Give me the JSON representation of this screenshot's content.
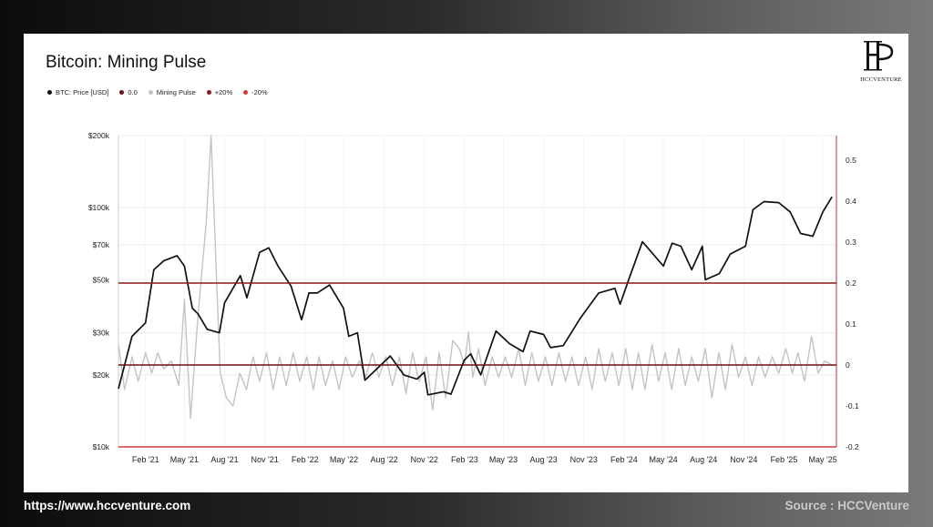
{
  "footer": {
    "url": "https://www.hccventure.com",
    "source": "Source : HCCVenture"
  },
  "logo": {
    "text": "HCCVENTURE",
    "icon": "hcc-monogram-icon"
  },
  "colors": {
    "price": "#111111",
    "zero_line": "#6b1111",
    "mining_pulse": "#c4c4c4",
    "plus20": "#8b1a1a",
    "minus20": "#d63a3a"
  },
  "chart_data": {
    "type": "line",
    "title": "Bitcoin: Mining Pulse",
    "legend": [
      {
        "label": "BTC: Price [USD]",
        "color": "#111111"
      },
      {
        "label": "0.0",
        "color": "#6b1111"
      },
      {
        "label": "Mining Pulse",
        "color": "#c4c4c4"
      },
      {
        "label": "+20%",
        "color": "#8b1a1a"
      },
      {
        "label": "-20%",
        "color": "#d63a3a"
      }
    ],
    "x_ticks": [
      "Feb '21",
      "May '21",
      "Aug '21",
      "Nov '21",
      "Feb '22",
      "May '22",
      "Aug '22",
      "Nov '22",
      "Feb '23",
      "May '23",
      "Aug '23",
      "Nov '23",
      "Feb '24",
      "May '24",
      "Aug '24",
      "Nov '24",
      "Feb '25",
      "May '25"
    ],
    "x_range": [
      "2020-12",
      "2025-06"
    ],
    "y_left": {
      "scale": "log",
      "range": [
        10000,
        200000
      ],
      "ticks": [
        {
          "value": 10000,
          "label": "$10k"
        },
        {
          "value": 20000,
          "label": "$20k"
        },
        {
          "value": 30000,
          "label": "$30k"
        },
        {
          "value": 50000,
          "label": "$50k"
        },
        {
          "value": 70000,
          "label": "$70k"
        },
        {
          "value": 100000,
          "label": "$100k"
        },
        {
          "value": 200000,
          "label": "$200k"
        }
      ]
    },
    "y_right": {
      "scale": "linear",
      "range": [
        -0.2,
        0.56
      ],
      "ticks": [
        {
          "value": 0.5,
          "label": "0.5"
        },
        {
          "value": 0.4,
          "label": "0.4"
        },
        {
          "value": 0.3,
          "label": "0.3"
        },
        {
          "value": 0.2,
          "label": "0.2"
        },
        {
          "value": 0.1,
          "label": "0.1"
        },
        {
          "value": 0,
          "label": "0"
        },
        {
          "value": -0.1,
          "label": "-0.1"
        },
        {
          "value": -0.2,
          "label": "-0.2"
        }
      ]
    },
    "reference_lines": [
      {
        "name": "0.0",
        "value": 0,
        "axis": "right",
        "color": "#6b1111"
      },
      {
        "name": "+20%",
        "value": 0.2,
        "axis": "right",
        "color": "#8b1a1a"
      },
      {
        "name": "-20%",
        "value": -0.2,
        "axis": "right",
        "color": "#d63a3a"
      }
    ],
    "grid": true,
    "series": [
      {
        "name": "BTC: Price [USD]",
        "axis": "left",
        "color": "#111111",
        "points": [
          [
            "2020-12-01",
            17500
          ],
          [
            "2021-01-01",
            29000
          ],
          [
            "2021-02-01",
            33000
          ],
          [
            "2021-02-20",
            55000
          ],
          [
            "2021-03-15",
            60000
          ],
          [
            "2021-04-14",
            63000
          ],
          [
            "2021-05-01",
            57000
          ],
          [
            "2021-05-19",
            38000
          ],
          [
            "2021-06-01",
            36000
          ],
          [
            "2021-06-22",
            31000
          ],
          [
            "2021-07-20",
            30000
          ],
          [
            "2021-08-01",
            40000
          ],
          [
            "2021-09-06",
            52000
          ],
          [
            "2021-09-21",
            42000
          ],
          [
            "2021-10-20",
            65000
          ],
          [
            "2021-11-10",
            68000
          ],
          [
            "2021-12-01",
            57000
          ],
          [
            "2021-12-31",
            47000
          ],
          [
            "2022-01-24",
            34000
          ],
          [
            "2022-02-10",
            44000
          ],
          [
            "2022-03-01",
            44000
          ],
          [
            "2022-03-29",
            47500
          ],
          [
            "2022-04-30",
            38000
          ],
          [
            "2022-05-12",
            29000
          ],
          [
            "2022-06-01",
            30000
          ],
          [
            "2022-06-18",
            19000
          ],
          [
            "2022-07-01",
            20000
          ],
          [
            "2022-08-15",
            24000
          ],
          [
            "2022-09-15",
            20000
          ],
          [
            "2022-10-15",
            19200
          ],
          [
            "2022-11-01",
            20500
          ],
          [
            "2022-11-09",
            16500
          ],
          [
            "2022-12-15",
            17000
          ],
          [
            "2023-01-01",
            16600
          ],
          [
            "2023-01-31",
            23000
          ],
          [
            "2023-02-15",
            24500
          ],
          [
            "2023-03-10",
            20000
          ],
          [
            "2023-04-14",
            30500
          ],
          [
            "2023-05-15",
            27000
          ],
          [
            "2023-06-15",
            25000
          ],
          [
            "2023-07-01",
            30500
          ],
          [
            "2023-08-01",
            29500
          ],
          [
            "2023-08-17",
            26000
          ],
          [
            "2023-09-15",
            26500
          ],
          [
            "2023-10-24",
            34500
          ],
          [
            "2023-12-05",
            44000
          ],
          [
            "2024-01-11",
            46000
          ],
          [
            "2024-01-23",
            39500
          ],
          [
            "2024-02-15",
            52000
          ],
          [
            "2024-03-14",
            72000
          ],
          [
            "2024-05-01",
            57000
          ],
          [
            "2024-05-21",
            71000
          ],
          [
            "2024-06-10",
            69000
          ],
          [
            "2024-07-05",
            55000
          ],
          [
            "2024-07-29",
            69000
          ],
          [
            "2024-08-05",
            50000
          ],
          [
            "2024-09-06",
            53000
          ],
          [
            "2024-10-01",
            64000
          ],
          [
            "2024-11-05",
            69000
          ],
          [
            "2024-11-22",
            98000
          ],
          [
            "2024-12-17",
            106000
          ],
          [
            "2025-01-20",
            105000
          ],
          [
            "2025-02-15",
            96000
          ],
          [
            "2025-03-11",
            78000
          ],
          [
            "2025-04-08",
            76000
          ],
          [
            "2025-05-01",
            96000
          ],
          [
            "2025-05-22",
            111000
          ]
        ]
      },
      {
        "name": "Mining Pulse",
        "axis": "right",
        "color": "#c4c4c4",
        "points": [
          [
            "2020-12-01",
            0.05
          ],
          [
            "2020-12-15",
            -0.06
          ],
          [
            "2021-01-01",
            0.02
          ],
          [
            "2021-01-15",
            -0.04
          ],
          [
            "2021-02-01",
            0.03
          ],
          [
            "2021-02-15",
            -0.02
          ],
          [
            "2021-03-01",
            0.03
          ],
          [
            "2021-03-15",
            -0.01
          ],
          [
            "2021-04-01",
            0.01
          ],
          [
            "2021-04-18",
            -0.05
          ],
          [
            "2021-05-01",
            0.16
          ],
          [
            "2021-05-15",
            -0.13
          ],
          [
            "2021-06-01",
            0.12
          ],
          [
            "2021-06-20",
            0.35
          ],
          [
            "2021-07-01",
            0.56
          ],
          [
            "2021-07-12",
            0.25
          ],
          [
            "2021-07-22",
            -0.02
          ],
          [
            "2021-08-05",
            -0.08
          ],
          [
            "2021-08-20",
            -0.1
          ],
          [
            "2021-09-05",
            -0.02
          ],
          [
            "2021-09-20",
            -0.06
          ],
          [
            "2021-10-05",
            0.02
          ],
          [
            "2021-10-20",
            -0.04
          ],
          [
            "2021-11-05",
            0.03
          ],
          [
            "2021-11-20",
            -0.06
          ],
          [
            "2021-12-05",
            0.02
          ],
          [
            "2021-12-20",
            -0.05
          ],
          [
            "2022-01-05",
            0.03
          ],
          [
            "2022-01-20",
            -0.04
          ],
          [
            "2022-02-05",
            0.02
          ],
          [
            "2022-02-20",
            -0.06
          ],
          [
            "2022-03-05",
            0.02
          ],
          [
            "2022-03-20",
            -0.05
          ],
          [
            "2022-04-05",
            0.01
          ],
          [
            "2022-04-20",
            -0.06
          ],
          [
            "2022-05-05",
            0.02
          ],
          [
            "2022-05-20",
            -0.03
          ],
          [
            "2022-06-05",
            0.01
          ],
          [
            "2022-06-20",
            -0.03
          ],
          [
            "2022-07-05",
            0.03
          ],
          [
            "2022-07-20",
            -0.03
          ],
          [
            "2022-08-05",
            0.02
          ],
          [
            "2022-08-20",
            -0.05
          ],
          [
            "2022-09-05",
            0.02
          ],
          [
            "2022-09-20",
            -0.07
          ],
          [
            "2022-10-05",
            0.03
          ],
          [
            "2022-10-20",
            -0.04
          ],
          [
            "2022-11-05",
            0.02
          ],
          [
            "2022-11-20",
            -0.11
          ],
          [
            "2022-12-05",
            0.03
          ],
          [
            "2022-12-20",
            -0.08
          ],
          [
            "2023-01-05",
            0.06
          ],
          [
            "2023-01-20",
            0.04
          ],
          [
            "2023-02-01",
            0.0
          ],
          [
            "2023-02-10",
            0.08
          ],
          [
            "2023-02-20",
            -0.03
          ],
          [
            "2023-03-05",
            0.04
          ],
          [
            "2023-03-20",
            -0.05
          ],
          [
            "2023-04-05",
            0.02
          ],
          [
            "2023-04-20",
            -0.03
          ],
          [
            "2023-05-05",
            0.02
          ],
          [
            "2023-05-20",
            -0.03
          ],
          [
            "2023-06-05",
            0.04
          ],
          [
            "2023-06-20",
            -0.05
          ],
          [
            "2023-07-05",
            0.03
          ],
          [
            "2023-07-20",
            -0.04
          ],
          [
            "2023-08-05",
            0.02
          ],
          [
            "2023-08-20",
            -0.05
          ],
          [
            "2023-09-05",
            0.03
          ],
          [
            "2023-09-20",
            -0.04
          ],
          [
            "2023-10-05",
            0.02
          ],
          [
            "2023-10-20",
            -0.05
          ],
          [
            "2023-11-05",
            0.02
          ],
          [
            "2023-11-20",
            -0.06
          ],
          [
            "2023-12-05",
            0.04
          ],
          [
            "2023-12-20",
            -0.04
          ],
          [
            "2024-01-05",
            0.03
          ],
          [
            "2024-01-20",
            -0.05
          ],
          [
            "2024-02-05",
            0.04
          ],
          [
            "2024-02-20",
            -0.06
          ],
          [
            "2024-03-05",
            0.03
          ],
          [
            "2024-03-20",
            -0.06
          ],
          [
            "2024-04-05",
            0.05
          ],
          [
            "2024-04-20",
            -0.04
          ],
          [
            "2024-05-05",
            0.03
          ],
          [
            "2024-05-20",
            -0.06
          ],
          [
            "2024-06-05",
            0.04
          ],
          [
            "2024-06-20",
            -0.05
          ],
          [
            "2024-07-05",
            0.02
          ],
          [
            "2024-07-20",
            -0.04
          ],
          [
            "2024-08-05",
            0.04
          ],
          [
            "2024-08-20",
            -0.08
          ],
          [
            "2024-09-05",
            0.03
          ],
          [
            "2024-09-20",
            -0.06
          ],
          [
            "2024-10-05",
            0.05
          ],
          [
            "2024-10-20",
            -0.03
          ],
          [
            "2024-11-05",
            0.02
          ],
          [
            "2024-11-20",
            -0.05
          ],
          [
            "2024-12-05",
            0.02
          ],
          [
            "2024-12-20",
            -0.03
          ],
          [
            "2025-01-05",
            0.02
          ],
          [
            "2025-01-20",
            -0.02
          ],
          [
            "2025-02-05",
            0.04
          ],
          [
            "2025-02-20",
            -0.02
          ],
          [
            "2025-03-05",
            0.03
          ],
          [
            "2025-03-20",
            -0.04
          ],
          [
            "2025-04-05",
            0.07
          ],
          [
            "2025-04-20",
            -0.02
          ],
          [
            "2025-05-05",
            0.01
          ],
          [
            "2025-05-22",
            0.0
          ]
        ]
      }
    ]
  }
}
